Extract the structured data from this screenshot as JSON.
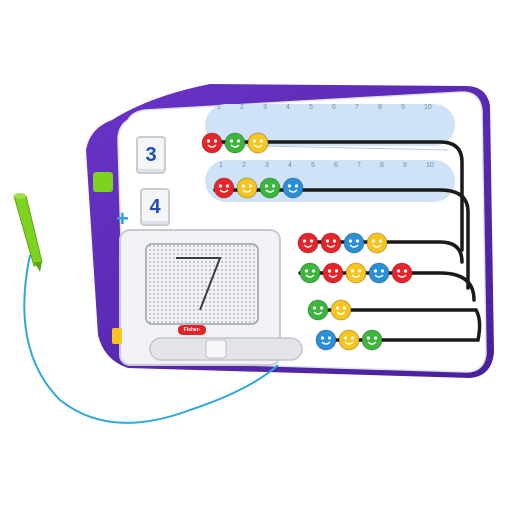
{
  "product": {
    "brand_logo_text": "Fisher-Price",
    "drawn_digit": "7"
  },
  "flip_counters": {
    "top": {
      "value": "3"
    },
    "bottom": {
      "value": "4"
    }
  },
  "operator": {
    "symbol": "+"
  },
  "number_line_ticks": [
    "1",
    "2",
    "3",
    "4",
    "5",
    "6",
    "7",
    "8",
    "9",
    "10"
  ],
  "bead_rows": {
    "row1": {
      "count": 3,
      "colors": [
        "#e8242b",
        "#3bb53b",
        "#f7c51d"
      ]
    },
    "row2": {
      "count": 4,
      "colors": [
        "#e8242b",
        "#f7c51d",
        "#3bb53b",
        "#2b8fd8"
      ]
    },
    "row3": {
      "count": 4,
      "colors": [
        "#e8242b",
        "#e8242b",
        "#2b8fd8",
        "#f7c51d"
      ]
    },
    "row4": {
      "count": 5,
      "colors": [
        "#3bb53b",
        "#e8242b",
        "#f7c51d",
        "#2b8fd8",
        "#e8242b"
      ]
    },
    "row5": {
      "count": 2,
      "colors": [
        "#3bb53b",
        "#f7c51d"
      ]
    },
    "row6": {
      "count": 3,
      "colors": [
        "#2b8fd8",
        "#f7c51d",
        "#3bb53b"
      ]
    }
  },
  "colors": {
    "board_frame": "#5b2ab5",
    "board_face": "#ffffff",
    "number_track": "#cfe2f7",
    "stylus": "#7ed321",
    "tether": "#2fa8d8",
    "wire": "#1a1a1a"
  }
}
